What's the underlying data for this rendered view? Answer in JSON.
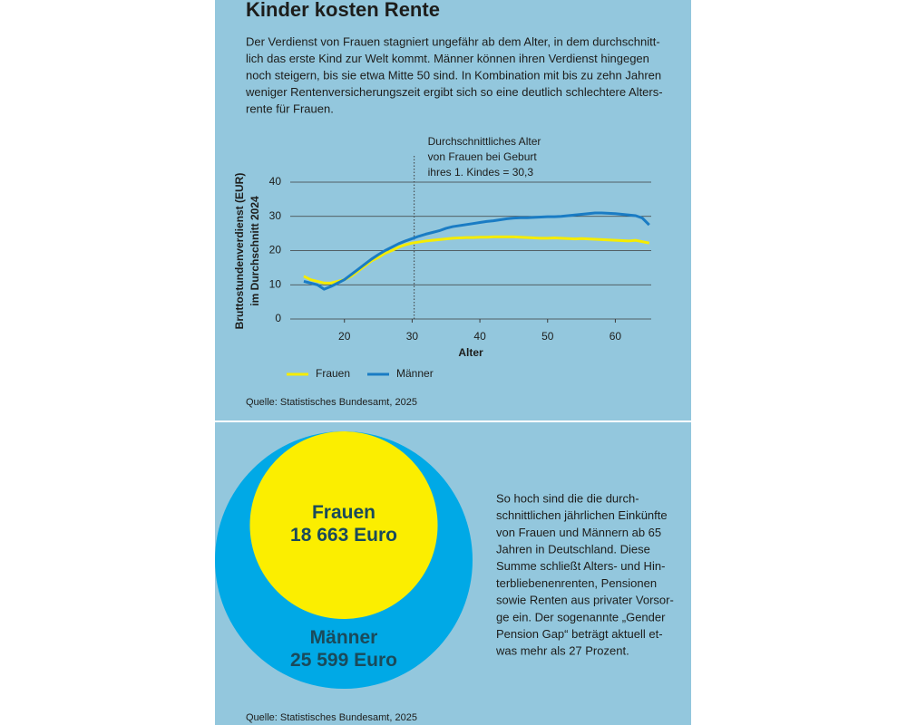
{
  "title": "Kinder kosten Rente",
  "intro": [
    "Der Verdienst von Frauen stagniert ungefähr ab dem Alter, in dem durchschnitt-",
    "lich das erste Kind zur Welt kommt. Männer können ihren Verdienst hingegen",
    "noch steigern, bis sie etwa Mitte 50 sind. In Kombination mit bis zu zehn Jahren",
    "weniger Rentenversicherungszeit ergibt sich so eine deutlich schlechtere Alters-",
    "rente für Frauen."
  ],
  "source_1": "Quelle: Statistisches Bundesamt, 2025",
  "text_2": [
    "So hoch sind die die durch-",
    "schnittlichen jährlichen Einkünfte",
    "von Frauen und Männern ab 65",
    "Jahren in Deutschland. Diese",
    "Summe schließt Alters- und Hin-",
    "terbliebenenrenten, Pensionen",
    "sowie Renten aus privater Vorsor-",
    "ge ein. Der sogenannte „Gender",
    "Pension Gap“ beträgt aktuell et-",
    "was mehr als 27 Prozent."
  ],
  "source_2": "Quelle: Statistisches Bundesamt, 2025",
  "chart_data": [
    {
      "type": "line",
      "ylabel": [
        "Bruttostundenverdienst (EUR)",
        "im Durchschnitt 2024"
      ],
      "xlabel": "Alter",
      "annotation": {
        "x": 30.3,
        "lines": [
          "Durchschnittliches Alter",
          "von Frauen bei Geburt",
          "ihres 1. Kindes = 30,3"
        ]
      },
      "x": [
        14,
        15,
        16,
        17,
        18,
        19,
        20,
        21,
        22,
        23,
        24,
        25,
        26,
        27,
        28,
        29,
        30,
        31,
        32,
        33,
        34,
        35,
        36,
        37,
        38,
        39,
        40,
        41,
        42,
        43,
        44,
        45,
        46,
        47,
        48,
        49,
        50,
        51,
        52,
        53,
        54,
        55,
        56,
        57,
        58,
        59,
        60,
        61,
        62,
        63,
        64,
        65
      ],
      "series": [
        {
          "name": "Frauen",
          "color": "#f5ec00",
          "values": [
            12.5,
            11.5,
            11,
            10.5,
            10.5,
            11,
            11.5,
            12.5,
            14,
            15.5,
            17,
            18,
            19.2,
            20,
            21,
            21.7,
            22.2,
            22.5,
            22.8,
            23,
            23.2,
            23.4,
            23.6,
            23.7,
            23.8,
            23.8,
            23.9,
            23.9,
            24,
            24,
            24,
            24,
            23.9,
            23.8,
            23.7,
            23.6,
            23.6,
            23.7,
            23.6,
            23.5,
            23.4,
            23.5,
            23.4,
            23.3,
            23.2,
            23.1,
            23,
            22.9,
            22.8,
            23,
            22.6,
            22.2
          ]
        },
        {
          "name": "Männer",
          "color": "#1a7cc4",
          "values": [
            11,
            10.5,
            10,
            8.7,
            9.5,
            10.5,
            11.5,
            13,
            14.5,
            16,
            17.5,
            18.8,
            20,
            21,
            22,
            22.8,
            23.5,
            24.2,
            24.8,
            25.3,
            25.8,
            26.5,
            27,
            27.3,
            27.6,
            27.9,
            28.2,
            28.5,
            28.7,
            29,
            29.3,
            29.5,
            29.6,
            29.6,
            29.7,
            29.8,
            29.9,
            29.9,
            30,
            30.2,
            30.4,
            30.6,
            30.8,
            31,
            31,
            30.9,
            30.8,
            30.6,
            30.4,
            30.2,
            29.5,
            27.5
          ]
        }
      ],
      "xlim": [
        12,
        65.3
      ],
      "ylim": [
        0,
        40
      ],
      "xticks": [
        20,
        30,
        40,
        50,
        60
      ],
      "yticks": [
        0,
        10,
        20,
        30,
        40
      ],
      "grid": true
    },
    {
      "type": "nested-circles",
      "series": [
        {
          "name": "Männer",
          "color": "#00a9e6",
          "value": 25599,
          "value_label": "25 599 Euro"
        },
        {
          "name": "Frauen",
          "color": "#fbee00",
          "value": 18663,
          "value_label": "18 663 Euro"
        }
      ]
    }
  ]
}
